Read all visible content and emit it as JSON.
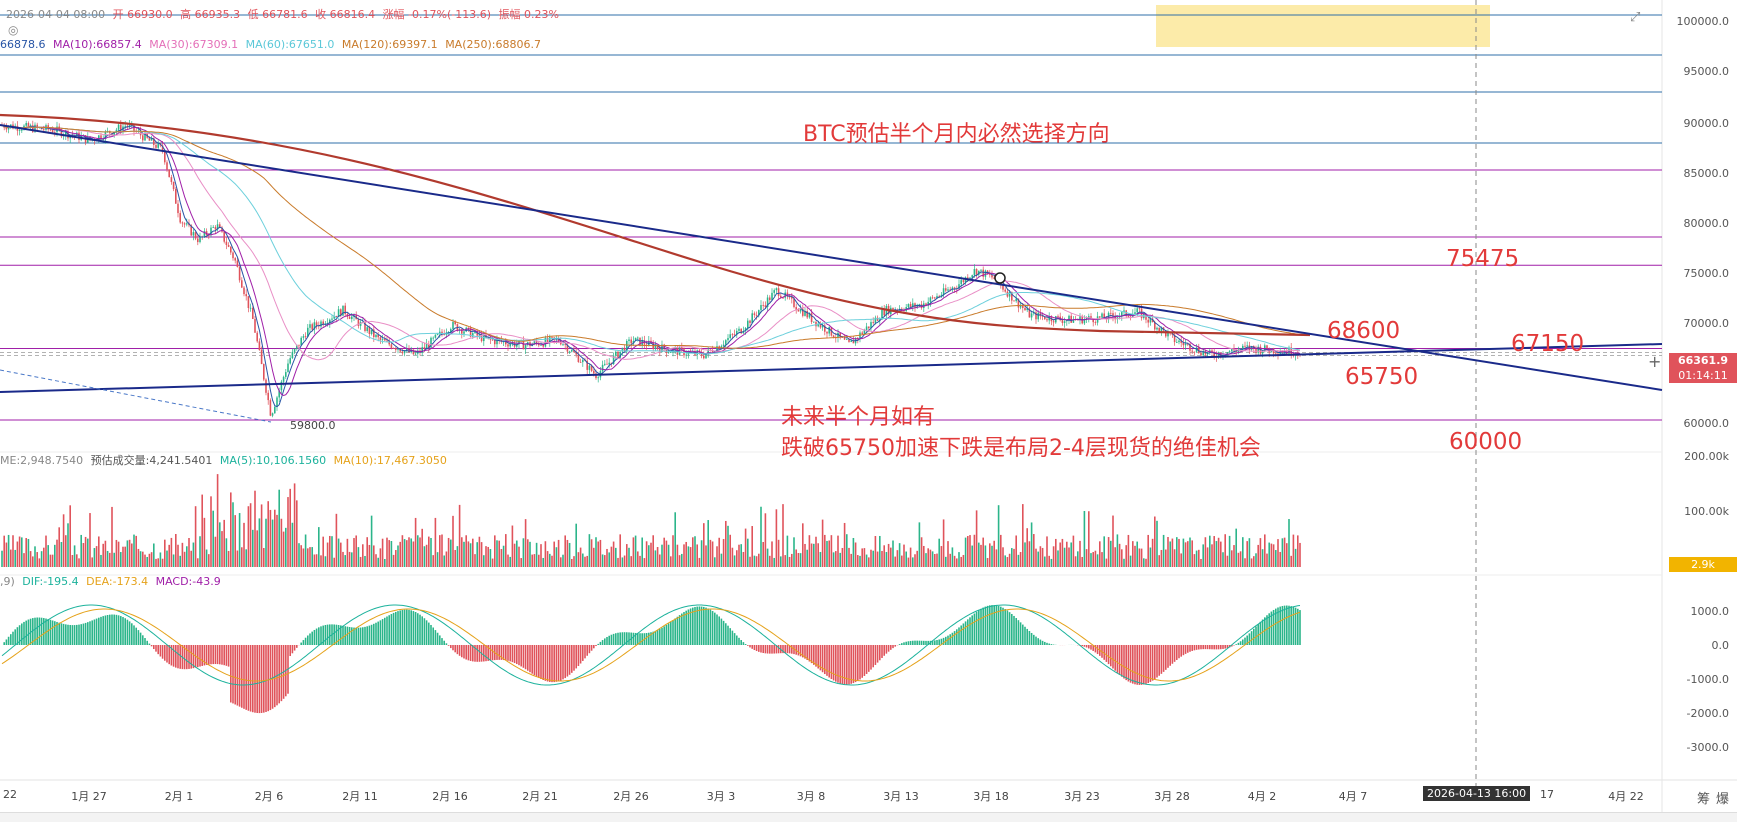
{
  "header": {
    "line1": {
      "date": "2026-04-04 08:00",
      "open": "开 66930.0",
      "high": "高 66935.3",
      "low": "低 66781.6",
      "close": "收 66816.4",
      "change": "涨幅 -0.17%(-113.6)",
      "amp": "振幅 0.23%"
    },
    "line2": {
      "ma5": "66878.6",
      "ma10": "MA(10):66857.4",
      "ma30": "MA(30):67309.1",
      "ma60": "MA(60):67651.0",
      "ma120": "MA(120):69397.1",
      "ma250": "MA(250):68806.7"
    },
    "volume": {
      "vol": "ME:2,948.7540",
      "est": "预估成交量:4,241.5401",
      "ma5": "MA(5):10,106.1560",
      "ma10": "MA(10):17,467.3050"
    },
    "macd": {
      "prefix": ",9)",
      "dif": "DIF:-195.4",
      "dea": "DEA:-173.4",
      "macd": "MACD:-43.9"
    }
  },
  "annotations": {
    "title": "BTC预估半个月内必然选择方向",
    "note_line1": "未来半个月如有",
    "note_line2": "跌破65750加速下跌是布局2-4层现货的绝佳机会",
    "level_75475": "75475",
    "level_68600": "68600",
    "level_67150": "67150",
    "level_65750": "65750",
    "level_60000": "60000",
    "low_marker": "59800.0"
  },
  "price_axis": {
    "labels": [
      "100000.0",
      "95000.0",
      "90000.0",
      "85000.0",
      "80000.0",
      "75000.0",
      "70000.0",
      "60000.0"
    ],
    "current_price": "66361.9",
    "countdown": "01:14:11"
  },
  "volume_axis": {
    "labels": [
      "200.00k",
      "100.00k"
    ],
    "current": "2.9k"
  },
  "macd_axis": {
    "labels": [
      "1000.0",
      "0.0",
      "-1000.0",
      "-2000.0",
      "-3000.0"
    ]
  },
  "date_axis": {
    "labels": [
      "22",
      "1月 27",
      "2月 1",
      "2月 6",
      "2月 11",
      "2月 16",
      "2月 21",
      "2月 26",
      "3月 3",
      "3月 8",
      "3月 13",
      "3月 18",
      "3月 23",
      "3月 28",
      "4月 2",
      "4月 7",
      "17",
      "4月 22"
    ],
    "crosshair_label": "2026-04-13 16:00"
  },
  "corner": {
    "label1": "筹",
    "label2": "爆"
  },
  "colors": {
    "up": "#2bb58a",
    "down": "#e0535b",
    "trend": "#1a2a8a",
    "ma120": "#b13a2e",
    "hline_blue": "#2f6fa8",
    "hline_purple": "#a01fa8",
    "highlight": "#fbe89a"
  },
  "chart_data": {
    "type": "line",
    "title": "BTC预估半个月内必然选择方向",
    "xlabel": "",
    "ylabel": "",
    "x_range": [
      "2026-01-22",
      "2026-04-24"
    ],
    "ylim": [
      57500,
      101500
    ],
    "price_series": {
      "name": "BTC",
      "x": [
        "01-22",
        "01-25",
        "01-27",
        "01-29",
        "01-31",
        "02-01",
        "02-02",
        "02-03",
        "02-04",
        "02-05",
        "02-06",
        "02-07",
        "02-08",
        "02-10",
        "02-12",
        "02-14",
        "02-16",
        "02-18",
        "02-20",
        "02-22",
        "02-24",
        "02-26",
        "02-28",
        "03-02",
        "03-04",
        "03-06",
        "03-08",
        "03-10",
        "03-12",
        "03-14",
        "03-16",
        "03-17",
        "03-18",
        "03-20",
        "03-22",
        "03-24",
        "03-26",
        "03-28",
        "03-30",
        "04-01",
        "04-03",
        "04-04"
      ],
      "values": [
        89500,
        89000,
        88000,
        89500,
        87000,
        80000,
        78000,
        79500,
        76000,
        70000,
        60500,
        66000,
        69000,
        71000,
        68000,
        66500,
        69500,
        68000,
        67500,
        68000,
        64500,
        68000,
        67000,
        66500,
        69000,
        73000,
        70000,
        67500,
        71000,
        71500,
        73500,
        75000,
        74200,
        70500,
        70000,
        70200,
        70800,
        68000,
        66500,
        67200,
        66930,
        66816
      ]
    },
    "trend_lines": [
      {
        "name": "upper",
        "from": [
          "01-22",
          89500
        ],
        "to": [
          "04-24",
          63000
        ]
      },
      {
        "name": "lower",
        "from": [
          "01-22",
          62800
        ],
        "to": [
          "04-24",
          67600
        ]
      }
    ],
    "horizontal_levels": [
      100500,
      96500,
      92800,
      87700,
      85000,
      78300,
      75475,
      67150,
      60000
    ],
    "labeled_levels": [
      75475,
      68600,
      67150,
      65750,
      60000
    ],
    "low_point": 59800,
    "macd": {
      "dif": -195.4,
      "dea": -173.4,
      "macd": -43.9
    }
  }
}
